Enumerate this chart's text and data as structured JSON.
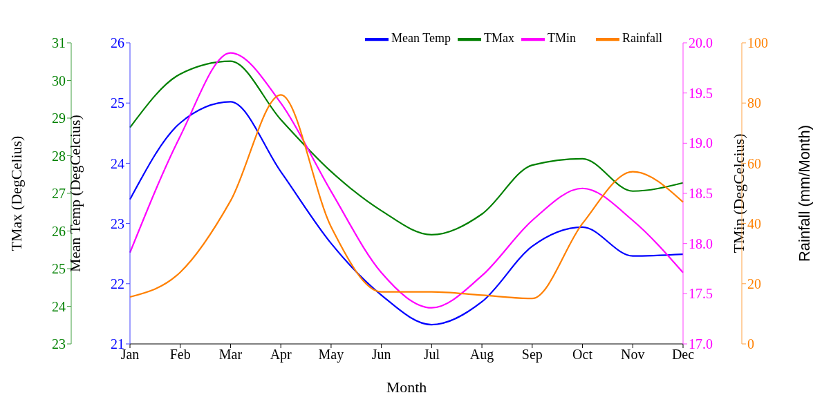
{
  "chart_data": [
    {
      "type": "line",
      "xlabel": "Month",
      "ylabel": "Mean Temp (DegCelcius)",
      "y2label": "TMin (DegCelcius)",
      "y3label": "TMax (DegCelius)",
      "categories": [
        "Jan",
        "Feb",
        "Mar",
        "Apr",
        "May",
        "Jun",
        "Jul",
        "Aug",
        "Sep",
        "Oct",
        "Nov",
        "Dec"
      ],
      "series": [
        {
          "name": "Mean Temp",
          "color": "#0000ff",
          "values": [
            23.4,
            24.67,
            25.02,
            23.86,
            22.67,
            21.81,
            21.32,
            21.7,
            22.62,
            22.94,
            22.46,
            22.49
          ]
        },
        {
          "name": "TMax",
          "color": "#008000",
          "axis": "y3",
          "values": [
            28.75,
            30.17,
            30.51,
            28.96,
            27.58,
            26.54,
            25.9,
            26.45,
            27.75,
            27.92,
            27.06,
            27.28
          ]
        },
        {
          "name": "TMin",
          "color": "#ff00ff",
          "axis": "y2",
          "values": [
            17.91,
            19.07,
            19.9,
            19.4,
            18.52,
            17.71,
            17.36,
            17.68,
            18.23,
            18.55,
            18.23,
            17.71
          ]
        }
      ],
      "ylim": [
        21,
        26
      ],
      "yticks": [
        21,
        22,
        23,
        24,
        25,
        26
      ],
      "y2lim": [
        17,
        20
      ],
      "y2ticks": [
        {
          "value": 17,
          "label": "17.0"
        },
        {
          "value": 17.5,
          "label": "17.5"
        },
        {
          "value": 18,
          "label": "18.0"
        },
        {
          "value": 18.5,
          "label": "18.5"
        },
        {
          "value": 19,
          "label": "19.0"
        },
        {
          "value": 19.5,
          "label": "19.5"
        },
        {
          "value": 20,
          "label": "20.0"
        }
      ],
      "y3lim": [
        23,
        31
      ],
      "y3ticks": [
        23,
        24,
        25,
        26,
        27,
        28,
        29,
        30,
        31
      ],
      "grid": false,
      "legend": "top right",
      "marker": "none",
      "line_style": "solid"
    },
    {
      "type": "line",
      "ylabel": "Rainfall (mm/Month)",
      "categories": [
        null,
        null,
        null,
        null,
        null,
        null,
        null,
        null,
        null,
        null,
        null,
        null
      ],
      "series": [
        {
          "name": "Rainfall",
          "color": "#ff8000",
          "values": [
            15.6,
            23.8,
            47.5,
            82.7,
            38.9,
            17.3,
            17.3,
            16.2,
            15.1,
            40,
            57.2,
            47.1
          ]
        }
      ],
      "ylim": [
        0,
        100
      ],
      "yticks": [
        0,
        20,
        40,
        60,
        80,
        100
      ],
      "tick_labels": "y",
      "grid": false,
      "legend": "top right",
      "marker": "none",
      "line_style": "solid"
    }
  ]
}
